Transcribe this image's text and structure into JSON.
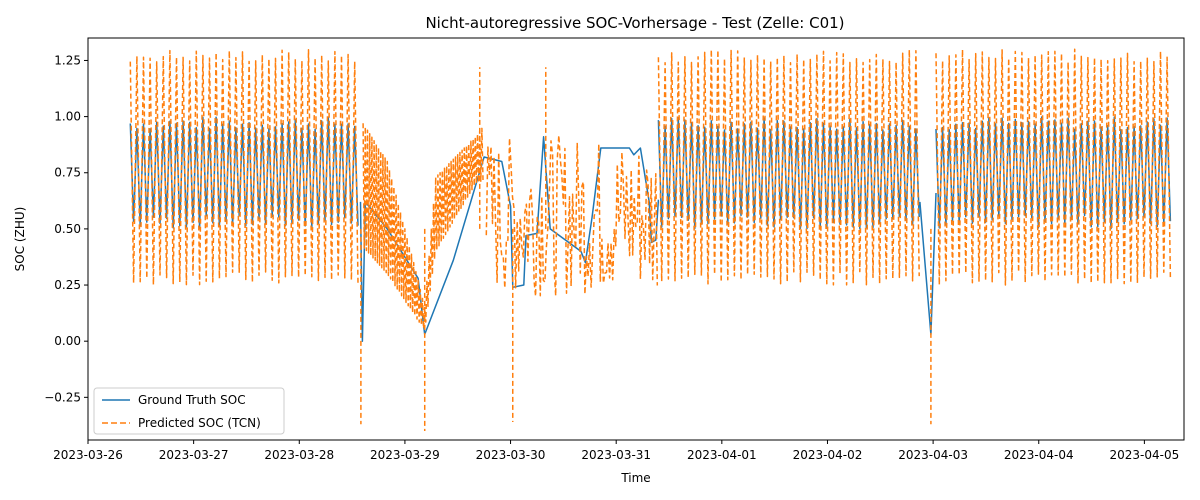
{
  "chart_data": {
    "type": "line",
    "title": "Nicht-autoregressive SOC-Vorhersage - Test (Zelle: C01)",
    "xlabel": "Time",
    "ylabel": "SOC (ZHU)",
    "x_range": [
      "2023-03-26",
      "2023-04-05 09:00"
    ],
    "ylim": [
      -0.44,
      1.35
    ],
    "x_ticks": [
      "2023-03-26",
      "2023-03-27",
      "2023-03-28",
      "2023-03-29",
      "2023-03-30",
      "2023-03-31",
      "2023-04-01",
      "2023-04-02",
      "2023-04-03",
      "2023-04-04",
      "2023-04-05"
    ],
    "y_ticks": [
      "−0.25",
      "0.00",
      "0.25",
      "0.50",
      "0.75",
      "1.00",
      "1.25"
    ],
    "y_tick_values": [
      -0.25,
      0,
      0.25,
      0.5,
      0.75,
      1.0,
      1.25
    ],
    "grid": false,
    "legend_position": "lower-left",
    "series": [
      {
        "name": "Ground Truth SOC",
        "color": "#1f77b4",
        "style": "solid",
        "segments": [
          {
            "type": "oscillation",
            "start": "2023-03-26 09:36",
            "end": "2023-03-28 13:55",
            "low": 0.53,
            "high": 0.97,
            "period_hours": 1.5
          },
          {
            "type": "path",
            "points": [
              [
                "2023-03-28 13:55",
                0.62
              ],
              [
                "2023-03-28 14:20",
                0.0
              ],
              [
                "2023-03-28 15:00",
                0.62
              ],
              [
                "2023-03-28 20:00",
                0.5
              ],
              [
                "2023-03-29 03:00",
                0.28
              ],
              [
                "2023-03-29 04:30",
                0.03
              ],
              [
                "2023-03-29 11:00",
                0.36
              ],
              [
                "2023-03-29 18:00",
                0.82
              ],
              [
                "2023-03-29 22:00",
                0.8
              ],
              [
                "2023-03-30 00:00",
                0.6
              ],
              [
                "2023-03-30 00:30",
                0.24
              ],
              [
                "2023-03-30 03:00",
                0.25
              ],
              [
                "2023-03-30 03:30",
                0.47
              ],
              [
                "2023-03-30 06:00",
                0.48
              ],
              [
                "2023-03-30 07:30",
                0.91
              ],
              [
                "2023-03-30 09:00",
                0.5
              ],
              [
                "2023-03-30 16:00",
                0.4
              ],
              [
                "2023-03-30 17:00",
                0.35
              ],
              [
                "2023-03-30 18:30",
                0.55
              ],
              [
                "2023-03-30 20:30",
                0.86
              ],
              [
                "2023-03-31 03:00",
                0.86
              ],
              [
                "2023-03-31 04:00",
                0.83
              ],
              [
                "2023-03-31 05:30",
                0.86
              ],
              [
                "2023-03-31 07:30",
                0.62
              ],
              [
                "2023-03-31 08:00",
                0.44
              ],
              [
                "2023-03-31 09:00",
                0.45
              ],
              [
                "2023-03-31 09:36",
                0.63
              ]
            ]
          },
          {
            "type": "oscillation",
            "start": "2023-03-31 09:36",
            "end": "2023-04-02 21:00",
            "low": 0.53,
            "high": 0.97,
            "period_hours": 1.5
          },
          {
            "type": "path",
            "points": [
              [
                "2023-04-02 21:00",
                0.62
              ],
              [
                "2023-04-02 23:30",
                0.03
              ],
              [
                "2023-04-03 00:40",
                0.66
              ]
            ]
          },
          {
            "type": "oscillation",
            "start": "2023-04-03 00:40",
            "end": "2023-04-05 06:00",
            "low": 0.53,
            "high": 0.97,
            "period_hours": 1.5
          }
        ]
      },
      {
        "name": "Predicted SOC (TCN)",
        "color": "#ff7f0e",
        "style": "dashed",
        "segments": [
          {
            "type": "oscillation",
            "start": "2023-03-26 09:36",
            "end": "2023-03-28 13:55",
            "low": 0.28,
            "high": 1.27,
            "period_hours": 1.5
          },
          {
            "type": "band",
            "points": [
              [
                "2023-03-28 14:30",
                0.42,
                0.97
              ],
              [
                "2023-03-28 20:00",
                0.3,
                0.8
              ],
              [
                "2023-03-29 02:00",
                0.12,
                0.35
              ],
              [
                "2023-03-29 04:30",
                0.05,
                0.15
              ],
              [
                "2023-03-29 07:00",
                0.4,
                0.73
              ],
              [
                "2023-03-29 16:00",
                0.7,
                0.91
              ],
              [
                "2023-03-29 18:00",
                0.72,
                0.96
              ]
            ]
          },
          {
            "type": "noisy",
            "start": "2023-03-29 18:30",
            "end": "2023-03-31 09:30",
            "low": 0.2,
            "high": 0.92
          },
          {
            "type": "oscillation",
            "start": "2023-03-31 09:36",
            "end": "2023-04-02 21:00",
            "low": 0.28,
            "high": 1.27,
            "period_hours": 1.5
          },
          {
            "type": "oscillation",
            "start": "2023-04-03 00:40",
            "end": "2023-04-05 06:00",
            "low": 0.28,
            "high": 1.27,
            "period_hours": 1.5
          }
        ],
        "spikes": [
          {
            "x": "2023-03-28 14:00",
            "y": -0.37
          },
          {
            "x": "2023-03-29 04:30",
            "y": -0.4
          },
          {
            "x": "2023-03-30 00:30",
            "y": -0.36
          },
          {
            "x": "2023-04-02 23:30",
            "y": -0.37
          },
          {
            "x": "2023-03-29 17:00",
            "y": 1.22
          },
          {
            "x": "2023-03-30 08:00",
            "y": 1.22
          }
        ]
      }
    ]
  }
}
